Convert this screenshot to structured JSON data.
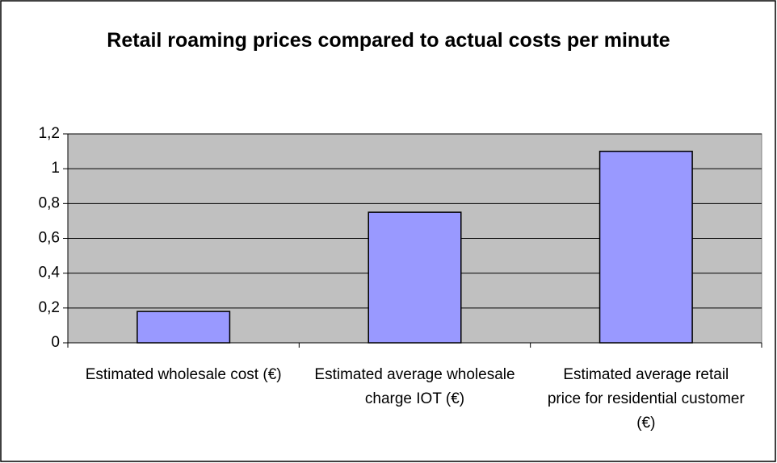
{
  "chart_data": {
    "type": "bar",
    "title": "Retail roaming prices compared to actual costs per minute",
    "categories": [
      "Estimated wholesale cost (€)",
      "Estimated average wholesale charge IOT (€)",
      "Estimated average retail price for residential customer (€)"
    ],
    "values": [
      0.18,
      0.75,
      1.1
    ],
    "color": "#9999ff",
    "ylim": [
      0,
      1.2
    ],
    "yticks": [
      0,
      {
        "value": 0.2,
        "label": "0,2"
      },
      {
        "value": 0.4,
        "label": "0,4"
      },
      {
        "value": 0.6,
        "label": "0,6"
      },
      {
        "value": 0.8,
        "label": "0,8"
      },
      1,
      {
        "value": 1.2,
        "label": "1,2"
      }
    ],
    "grid": true
  }
}
